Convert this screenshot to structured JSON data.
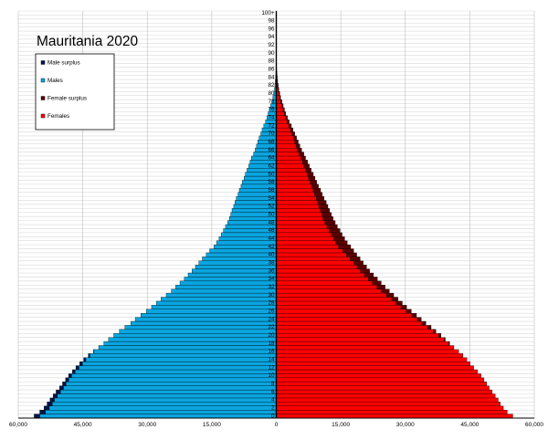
{
  "chart_data": {
    "type": "bar",
    "title": "Mauritania 2020",
    "xlim": [
      -60000,
      60000
    ],
    "x_ticks": [
      -60000,
      -45000,
      -30000,
      -15000,
      0,
      15000,
      30000,
      45000,
      60000
    ],
    "x_tick_labels": [
      "60,000",
      "45,000",
      "30,000",
      "15,000",
      "0",
      "15,000",
      "30,000",
      "45,000",
      "60,000"
    ],
    "age_labels": [
      "0",
      "2",
      "4",
      "6",
      "8",
      "10",
      "12",
      "14",
      "16",
      "18",
      "20",
      "22",
      "24",
      "26",
      "28",
      "30",
      "32",
      "34",
      "36",
      "38",
      "40",
      "42",
      "44",
      "46",
      "48",
      "50",
      "52",
      "54",
      "56",
      "58",
      "60",
      "62",
      "64",
      "66",
      "68",
      "70",
      "72",
      "74",
      "76",
      "78",
      "80",
      "82",
      "84",
      "86",
      "88",
      "90",
      "92",
      "94",
      "96",
      "98",
      "100+"
    ],
    "grid": true,
    "legend": {
      "position": "top-left",
      "items": [
        {
          "label": "Male surplus",
          "color": "#00174a"
        },
        {
          "label": "Males",
          "color": "#0aa5e0"
        },
        {
          "label": "Female surplus",
          "color": "#5a0000"
        },
        {
          "label": "Females",
          "color": "#ff0000"
        }
      ]
    },
    "colors": {
      "males": "#0aa5e0",
      "male_surplus": "#00174a",
      "females": "#ff0000",
      "female_surplus": "#5a0000"
    },
    "ages": [
      0,
      1,
      2,
      3,
      4,
      5,
      6,
      7,
      8,
      9,
      10,
      11,
      12,
      13,
      14,
      15,
      16,
      17,
      18,
      19,
      20,
      21,
      22,
      23,
      24,
      25,
      26,
      27,
      28,
      29,
      30,
      31,
      32,
      33,
      34,
      35,
      36,
      37,
      38,
      39,
      40,
      41,
      42,
      43,
      44,
      45,
      46,
      47,
      48,
      49,
      50,
      51,
      52,
      53,
      54,
      55,
      56,
      57,
      58,
      59,
      60,
      61,
      62,
      63,
      64,
      65,
      66,
      67,
      68,
      69,
      70,
      71,
      72,
      73,
      74,
      75,
      76,
      77,
      78,
      79,
      80,
      81,
      82,
      83,
      84,
      85,
      86,
      87,
      88,
      89,
      90,
      91,
      92,
      93,
      94,
      95,
      96,
      97,
      98,
      99,
      100
    ],
    "series": [
      {
        "name": "Males",
        "values": [
          56300,
          55000,
          54000,
          53300,
          52600,
          51900,
          51200,
          50400,
          49700,
          49000,
          48300,
          47400,
          46600,
          45700,
          44800,
          43700,
          42500,
          41300,
          40100,
          39000,
          37800,
          36500,
          35200,
          33800,
          32800,
          31500,
          30200,
          29000,
          27900,
          26800,
          25600,
          24400,
          23400,
          22400,
          21400,
          20500,
          19600,
          18800,
          18000,
          17200,
          16300,
          15500,
          14500,
          13900,
          13300,
          12800,
          12300,
          11800,
          11300,
          10900,
          10600,
          10300,
          9900,
          9600,
          9300,
          8900,
          8600,
          8200,
          7900,
          7500,
          7200,
          6800,
          6400,
          6100,
          5800,
          5300,
          4900,
          4600,
          4300,
          4000,
          3600,
          3300,
          2900,
          2500,
          2200,
          1900,
          1600,
          1300,
          1000,
          800,
          600,
          430,
          320,
          230,
          160,
          110,
          70,
          45,
          28,
          17,
          10,
          6,
          4,
          3,
          2,
          1,
          1,
          0,
          0,
          0,
          0
        ]
      },
      {
        "name": "Females",
        "values": [
          55000,
          53700,
          52800,
          52100,
          51600,
          50900,
          50200,
          49500,
          48900,
          48300,
          47600,
          46800,
          45900,
          45100,
          44300,
          43400,
          42400,
          41300,
          40300,
          39300,
          38300,
          37100,
          36000,
          34800,
          33700,
          32600,
          31400,
          30300,
          29300,
          28300,
          27300,
          26300,
          25300,
          24400,
          23500,
          22600,
          21700,
          21000,
          20200,
          19500,
          18700,
          18000,
          17300,
          16500,
          15900,
          15300,
          14800,
          14200,
          13700,
          13200,
          12800,
          12400,
          12000,
          11600,
          11100,
          10700,
          10300,
          9800,
          9400,
          9000,
          8600,
          8100,
          7700,
          7300,
          6800,
          6400,
          5900,
          5500,
          5100,
          4700,
          4300,
          3900,
          3500,
          3000,
          2600,
          2200,
          1900,
          1600,
          1300,
          1000,
          800,
          600,
          450,
          320,
          230,
          160,
          100,
          65,
          40,
          25,
          15,
          9,
          6,
          4,
          3,
          2,
          1,
          1,
          0,
          0,
          0
        ]
      }
    ]
  }
}
